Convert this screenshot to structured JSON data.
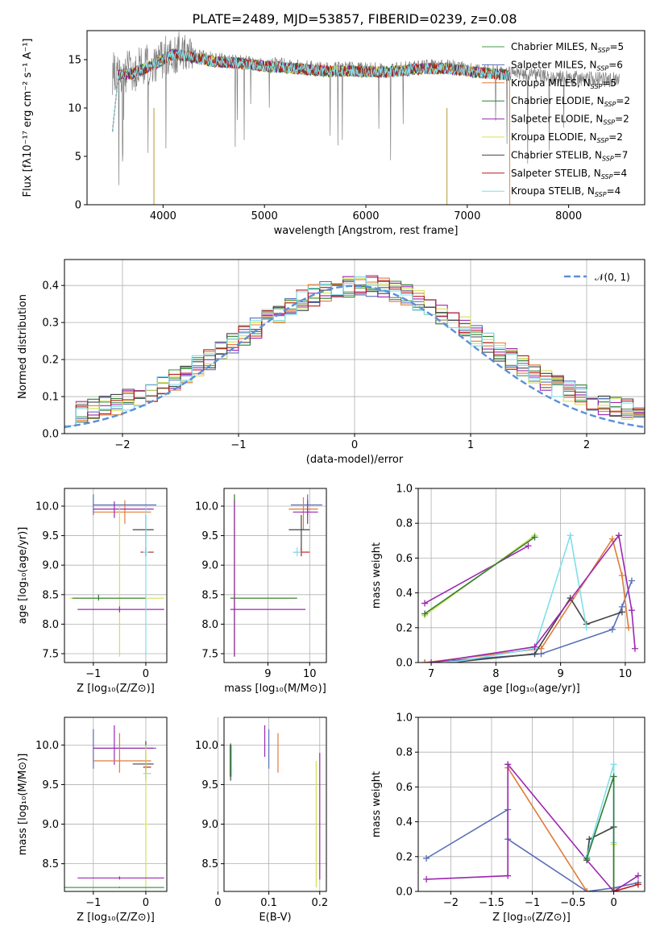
{
  "figure": {
    "title": "PLATE=2489, MJD=53857, FIBERID=0239, z=0.08"
  },
  "legend": [
    {
      "name": "Chabrier MILES, N_SSP=5",
      "base": "Chabrier MILES, N",
      "sub": "SSP",
      "tail": "=5",
      "color": "#4a9a4a"
    },
    {
      "name": "Salpeter MILES, N_SSP=6",
      "base": "Salpeter MILES, N",
      "sub": "SSP",
      "tail": "=6",
      "color": "#5a6fb8"
    },
    {
      "name": "Kroupa MILES, N_SSP=5",
      "base": "Kroupa MILES, N",
      "sub": "SSP",
      "tail": "=5",
      "color": "#e07b39"
    },
    {
      "name": "Chabrier ELODIE, N_SSP=2",
      "base": "Chabrier ELODIE, N",
      "sub": "SSP",
      "tail": "=2",
      "color": "#2e7d32"
    },
    {
      "name": "Salpeter ELODIE, N_SSP=2",
      "base": "Salpeter ELODIE, N",
      "sub": "SSP",
      "tail": "=2",
      "color": "#9c27b0"
    },
    {
      "name": "Kroupa ELODIE, N_SSP=2",
      "base": "Kroupa ELODIE, N",
      "sub": "SSP",
      "tail": "=2",
      "color": "#d4e157"
    },
    {
      "name": "Chabrier STELIB, N_SSP=7",
      "base": "Chabrier STELIB, N",
      "sub": "SSP",
      "tail": "=7",
      "color": "#444444"
    },
    {
      "name": "Salpeter STELIB, N_SSP=4",
      "base": "Salpeter STELIB, N",
      "sub": "SSP",
      "tail": "=4",
      "color": "#b71c1c"
    },
    {
      "name": "Kroupa STELIB, N_SSP=4",
      "base": "Kroupa STELIB, N",
      "sub": "SSP",
      "tail": "=4",
      "color": "#80deea"
    }
  ],
  "chart_data": [
    {
      "id": "spectrum",
      "type": "line",
      "xlabel": "wavelength [Angstrom, rest frame]",
      "ylabel": "Flux [fλ10⁻¹⁷ erg cm⁻² s⁻¹ A⁻¹]",
      "xlim": [
        3250,
        8750
      ],
      "ylim": [
        0,
        18
      ],
      "xticks": [
        4000,
        5000,
        6000,
        7000,
        8000
      ],
      "yticks": [
        0,
        5,
        10,
        15
      ],
      "grid": false,
      "legend_placement": "right",
      "continuum": [
        [
          3500,
          13.6
        ],
        [
          3700,
          13.8
        ],
        [
          3900,
          14.6
        ],
        [
          4100,
          15.8
        ],
        [
          4300,
          15.4
        ],
        [
          4500,
          15.0
        ],
        [
          4800,
          14.8
        ],
        [
          5000,
          14.5
        ],
        [
          5300,
          14.3
        ],
        [
          5600,
          14.0
        ],
        [
          5900,
          14.0
        ],
        [
          6200,
          13.9
        ],
        [
          6500,
          14.2
        ],
        [
          6800,
          14.3
        ],
        [
          7000,
          14.0
        ],
        [
          7200,
          13.8
        ],
        [
          7400,
          13.6
        ],
        [
          7700,
          13.3
        ],
        [
          8000,
          13.1
        ],
        [
          8300,
          13.0
        ],
        [
          8500,
          12.9
        ]
      ],
      "series": [
        {
          "name": "data",
          "x_range": [
            3500,
            8500
          ]
        },
        {
          "name": "models",
          "x_range": [
            3500,
            7420
          ]
        }
      ]
    },
    {
      "id": "residuals",
      "type": "line",
      "xlabel": "(data-model)/error",
      "ylabel": "Normed distribution",
      "xlim": [
        -2.5,
        2.5
      ],
      "ylim": [
        0,
        0.47
      ],
      "xticks": [
        -2,
        -1,
        0,
        1,
        2
      ],
      "yticks": [
        0.0,
        0.1,
        0.2,
        0.3,
        0.4
      ],
      "grid": true,
      "legend_placement": "top-right",
      "reference": {
        "label": "𝒩(0, 1)",
        "mean": 0,
        "sigma": 1,
        "color": "#5b8fd6"
      }
    },
    {
      "id": "age-vs-z",
      "type": "scatter",
      "xlabel": "Z [log₁₀(Z/Z⊙)]",
      "ylabel": "age  [log₁₀(age/yr)]",
      "xlim": [
        -1.55,
        0.4
      ],
      "ylim": [
        7.35,
        10.3
      ],
      "xticks": [
        -1,
        0
      ],
      "yticks": [
        7.5,
        8.0,
        8.5,
        9.0,
        9.5,
        10.0
      ],
      "grid": true,
      "points": [
        {
          "s": 2,
          "x": -0.4,
          "y": 9.9,
          "ex": [
            -1.0,
            0.1
          ],
          "ey": [
            9.7,
            10.1
          ]
        },
        {
          "s": 1,
          "x": -1.0,
          "y": 10.02,
          "ex": [
            -1.0,
            0.2
          ],
          "ey": [
            9.85,
            10.2
          ]
        },
        {
          "s": 4,
          "x": -0.6,
          "y": 9.95,
          "ex": [
            -1.0,
            0.15
          ],
          "ey": [
            9.8,
            10.08
          ]
        },
        {
          "s": 6,
          "x": 0.0,
          "y": 9.6,
          "ex": [
            -0.25,
            0.15
          ],
          "ey": [
            9.15,
            9.85
          ]
        },
        {
          "s": 7,
          "x": 0.0,
          "y": 9.22,
          "ex": [
            -0.1,
            0.15
          ],
          "ey": [
            9.15,
            9.3
          ]
        },
        {
          "s": 5,
          "x": -0.5,
          "y": 8.44,
          "ex": [
            -1.45,
            0.35
          ],
          "ey": [
            7.45,
            10.0
          ]
        },
        {
          "s": 3,
          "x": -0.9,
          "y": 8.44,
          "ex": [
            -1.4,
            0.0
          ],
          "ey": [
            8.4,
            8.5
          ]
        },
        {
          "s": 4,
          "x": -0.5,
          "y": 8.25,
          "ex": [
            -1.3,
            0.35
          ],
          "ey": [
            8.2,
            8.3
          ]
        },
        {
          "s": 8,
          "x": 0.0,
          "y": 9.22,
          "ex": [
            -0.05,
            0.05
          ],
          "ey": [
            7.45,
            10.0
          ]
        }
      ]
    },
    {
      "id": "age-vs-mass",
      "type": "scatter",
      "xlabel": "mass [log₁₀(M/M⊙)]",
      "ylabel": "",
      "xlim": [
        7.95,
        10.4
      ],
      "ylim": [
        7.35,
        10.3
      ],
      "xticks": [
        9,
        10
      ],
      "yticks": [
        7.5,
        8.0,
        8.5,
        9.0,
        9.5,
        10.0
      ],
      "grid": true,
      "points": [
        {
          "s": 1,
          "x": 9.95,
          "y": 10.02,
          "ex": [
            9.55,
            10.3
          ],
          "ey": [
            9.85,
            10.2
          ]
        },
        {
          "s": 2,
          "x": 9.85,
          "y": 9.95,
          "ex": [
            9.5,
            10.2
          ],
          "ey": [
            9.6,
            10.15
          ]
        },
        {
          "s": 4,
          "x": 9.95,
          "y": 9.9,
          "ex": [
            9.6,
            10.2
          ],
          "ey": [
            9.7,
            10.1
          ]
        },
        {
          "s": 6,
          "x": 9.8,
          "y": 9.6,
          "ex": [
            9.5,
            10.0
          ],
          "ey": [
            9.2,
            9.85
          ]
        },
        {
          "s": 7,
          "x": 9.8,
          "y": 9.22,
          "ex": [
            9.6,
            10.0
          ],
          "ey": [
            9.15,
            9.3
          ]
        },
        {
          "s": 8,
          "x": 9.7,
          "y": 9.22,
          "ex": [
            9.6,
            9.8
          ],
          "ey": [
            9.15,
            9.3
          ]
        },
        {
          "s": 5,
          "x": 8.2,
          "y": 8.44,
          "ex": [
            8.1,
            9.7
          ],
          "ey": [
            7.45,
            10.2
          ]
        },
        {
          "s": 3,
          "x": 8.2,
          "y": 8.44,
          "ex": [
            8.1,
            9.7
          ],
          "ey": [
            7.45,
            10.2
          ]
        },
        {
          "s": 4,
          "x": 8.2,
          "y": 8.25,
          "ex": [
            8.1,
            9.9
          ],
          "ey": [
            7.45,
            10.1
          ]
        }
      ]
    },
    {
      "id": "massweight-vs-age",
      "type": "line",
      "xlabel": "age  [log₁₀(age/yr)]",
      "ylabel": "mass weight",
      "xlim": [
        6.8,
        10.3
      ],
      "ylim": [
        0,
        1
      ],
      "xticks": [
        7,
        8,
        9,
        10
      ],
      "yticks": [
        0.0,
        0.2,
        0.4,
        0.6,
        0.8,
        1.0
      ],
      "grid": true,
      "series": [
        {
          "s": 4,
          "x": [
            6.9,
            8.5
          ],
          "y": [
            0.34,
            0.67
          ]
        },
        {
          "s": 5,
          "x": [
            6.9,
            8.6
          ],
          "y": [
            0.27,
            0.73
          ]
        },
        {
          "s": 3,
          "x": [
            6.9,
            8.6
          ],
          "y": [
            0.28,
            0.72
          ]
        },
        {
          "s": 1,
          "x": [
            6.9,
            8.7,
            9.8,
            9.95,
            10.1
          ],
          "y": [
            0.0,
            0.05,
            0.19,
            0.32,
            0.47
          ]
        },
        {
          "s": 2,
          "x": [
            6.9,
            8.7,
            9.8,
            9.95,
            10.05
          ],
          "y": [
            0.0,
            0.08,
            0.71,
            0.5,
            0.2
          ]
        },
        {
          "s": 6,
          "x": [
            7.3,
            8.6,
            9.15,
            9.4,
            9.95
          ],
          "y": [
            0.0,
            0.05,
            0.37,
            0.22,
            0.29
          ]
        },
        {
          "s": 8,
          "x": [
            7.3,
            8.6,
            9.15,
            9.4
          ],
          "y": [
            0.0,
            0.08,
            0.73,
            0.2
          ]
        },
        {
          "s": 4,
          "x": [
            7.0,
            8.6,
            9.9,
            10.1,
            10.15
          ],
          "y": [
            0.0,
            0.09,
            0.73,
            0.3,
            0.08
          ]
        }
      ]
    },
    {
      "id": "mass-vs-z",
      "type": "scatter",
      "xlabel": "Z [log₁₀(Z/Z⊙)]",
      "ylabel": "mass [log₁₀(M/M⊙)]",
      "xlim": [
        -1.55,
        0.4
      ],
      "ylim": [
        8.15,
        10.35
      ],
      "xticks": [
        -1,
        0
      ],
      "yticks": [
        8.5,
        9.0,
        9.5,
        10.0
      ],
      "grid": true,
      "points": [
        {
          "s": 1,
          "x": -1.0,
          "y": 9.96,
          "ex": [
            -1.0,
            0.2
          ],
          "ey": [
            9.7,
            10.2
          ]
        },
        {
          "s": 4,
          "x": -0.6,
          "y": 9.96,
          "ex": [
            -1.0,
            0.15
          ],
          "ey": [
            9.75,
            10.25
          ]
        },
        {
          "s": 2,
          "x": -0.5,
          "y": 9.8,
          "ex": [
            -1.0,
            0.1
          ],
          "ey": [
            9.65,
            10.15
          ]
        },
        {
          "s": 6,
          "x": 0.0,
          "y": 9.76,
          "ex": [
            -0.25,
            0.15
          ],
          "ey": [
            9.55,
            10.05
          ]
        },
        {
          "s": 7,
          "x": 0.0,
          "y": 9.72,
          "ex": [
            -0.05,
            0.1
          ],
          "ey": [
            9.65,
            9.8
          ]
        },
        {
          "s": 8,
          "x": 0.0,
          "y": 9.64,
          "ex": [
            -0.05,
            0.1
          ],
          "ey": [
            9.6,
            9.7
          ]
        },
        {
          "s": 5,
          "x": 0.0,
          "y": 9.0,
          "ex": [
            -0.05,
            0.05
          ],
          "ey": [
            8.2,
            10.0
          ]
        },
        {
          "s": 4,
          "x": -0.5,
          "y": 8.32,
          "ex": [
            -1.3,
            0.35
          ],
          "ey": [
            8.3,
            8.34
          ]
        },
        {
          "s": 0,
          "x": -0.5,
          "y": 8.2,
          "ex": [
            -1.55,
            0.35
          ],
          "ey": [
            8.19,
            8.21
          ]
        }
      ]
    },
    {
      "id": "mass-vs-ebv",
      "type": "scatter",
      "xlabel": "E(B-V)",
      "ylabel": "",
      "xlim": [
        0.012,
        0.213
      ],
      "ylim": [
        8.15,
        10.35
      ],
      "xticks": [
        0.0,
        0.1,
        0.2
      ],
      "yticks": [
        8.5,
        9.0,
        9.5,
        10.0
      ],
      "grid": true,
      "points": [
        {
          "s": 6,
          "x": 0.025,
          "y": 9.8,
          "ex": [
            0.025,
            0.025
          ],
          "ey": [
            9.55,
            10.02
          ]
        },
        {
          "s": 8,
          "x": 0.027,
          "y": 9.8,
          "ex": [
            0.027,
            0.027
          ],
          "ey": [
            9.6,
            10.0
          ]
        },
        {
          "s": 3,
          "x": 0.024,
          "y": 9.8,
          "ex": [
            0.024,
            0.024
          ],
          "ey": [
            9.6,
            10.0
          ]
        },
        {
          "s": 4,
          "x": 0.092,
          "y": 10.05,
          "ex": [
            0.092,
            0.092
          ],
          "ey": [
            9.85,
            10.25
          ]
        },
        {
          "s": 1,
          "x": 0.1,
          "y": 9.95,
          "ex": [
            0.1,
            0.1
          ],
          "ey": [
            9.7,
            10.2
          ]
        },
        {
          "s": 2,
          "x": 0.118,
          "y": 9.9,
          "ex": [
            0.118,
            0.118
          ],
          "ey": [
            9.65,
            10.15
          ]
        },
        {
          "s": 5,
          "x": 0.193,
          "y": 9.0,
          "ex": [
            0.193,
            0.193
          ],
          "ey": [
            8.2,
            9.8
          ]
        },
        {
          "s": 4,
          "x": 0.2,
          "y": 9.1,
          "ex": [
            0.2,
            0.2
          ],
          "ey": [
            8.3,
            9.9
          ]
        }
      ]
    },
    {
      "id": "massweight-vs-z",
      "type": "line",
      "xlabel": "Z [log₁₀(Z/Z⊙)]",
      "ylabel": "mass weight",
      "xlim": [
        -2.4,
        0.38
      ],
      "ylim": [
        0,
        1
      ],
      "xticks": [
        -2.0,
        -1.5,
        -1.0,
        -0.5,
        0.0
      ],
      "yticks": [
        0.0,
        0.2,
        0.4,
        0.6,
        0.8,
        1.0
      ],
      "grid": true,
      "series": [
        {
          "s": 1,
          "x": [
            -2.3,
            -1.3,
            -1.3,
            -0.33,
            0.0,
            0.3
          ],
          "y": [
            0.19,
            0.47,
            0.3,
            0.0,
            0.02,
            0.05
          ]
        },
        {
          "s": 2,
          "x": [
            -1.3,
            -0.33
          ],
          "y": [
            0.71,
            0.0
          ]
        },
        {
          "s": 4,
          "x": [
            -2.3,
            -1.3,
            -1.3,
            -0.33,
            0.0,
            0.3
          ],
          "y": [
            0.07,
            0.09,
            0.73,
            0.18,
            0.0,
            0.09
          ]
        },
        {
          "s": 6,
          "x": [
            -0.33,
            -0.3,
            0.0,
            0.0
          ],
          "y": [
            0.18,
            0.3,
            0.37,
            0.0
          ]
        },
        {
          "s": 8,
          "x": [
            -0.33,
            0.0,
            0.0,
            0.0
          ],
          "y": [
            0.2,
            0.73,
            0.0,
            0.28
          ]
        },
        {
          "s": 5,
          "x": [
            0.0,
            0.0
          ],
          "y": [
            0.27,
            0.0
          ]
        },
        {
          "s": 3,
          "x": [
            -0.33,
            0.0,
            0.0
          ],
          "y": [
            0.19,
            0.66,
            0.0
          ]
        },
        {
          "s": 7,
          "x": [
            0.3,
            0.0
          ],
          "y": [
            0.04,
            0.0
          ]
        }
      ]
    }
  ]
}
